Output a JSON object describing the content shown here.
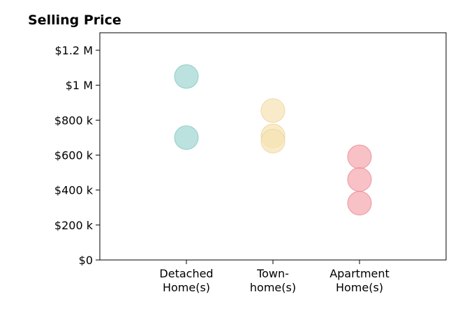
{
  "chart_data": {
    "type": "scatter",
    "title": "Selling Price",
    "xlabel": "",
    "ylabel": "",
    "ylim": [
      0,
      1300000
    ],
    "xlim": [
      0,
      4
    ],
    "grid": false,
    "y_ticks": [
      {
        "value": 0,
        "label": "$0"
      },
      {
        "value": 200000,
        "label": "$200 k"
      },
      {
        "value": 400000,
        "label": "$400 k"
      },
      {
        "value": 600000,
        "label": "$600 k"
      },
      {
        "value": 800000,
        "label": "$800 k"
      },
      {
        "value": 1000000,
        "label": "$1 M"
      },
      {
        "value": 1200000,
        "label": "$1.2 M"
      }
    ],
    "categories": [
      {
        "lines": [
          "Detached",
          "Home(s)"
        ],
        "position": 1
      },
      {
        "lines": [
          "Town-",
          "home(s)"
        ],
        "position": 2
      },
      {
        "lines": [
          "Apartment",
          "Home(s)"
        ],
        "position": 3
      }
    ],
    "series": [
      {
        "category_index": 0,
        "color": "#9fd6d1",
        "edge": "#7fc4be",
        "values": [
          1050000,
          700000
        ]
      },
      {
        "category_index": 1,
        "color": "#f6e3b4",
        "edge": "#ecd193",
        "values": [
          855000,
          710000,
          680000
        ]
      },
      {
        "category_index": 2,
        "color": "#f4a6ae",
        "edge": "#e98690",
        "values": [
          590000,
          460000,
          325000
        ]
      }
    ]
  }
}
